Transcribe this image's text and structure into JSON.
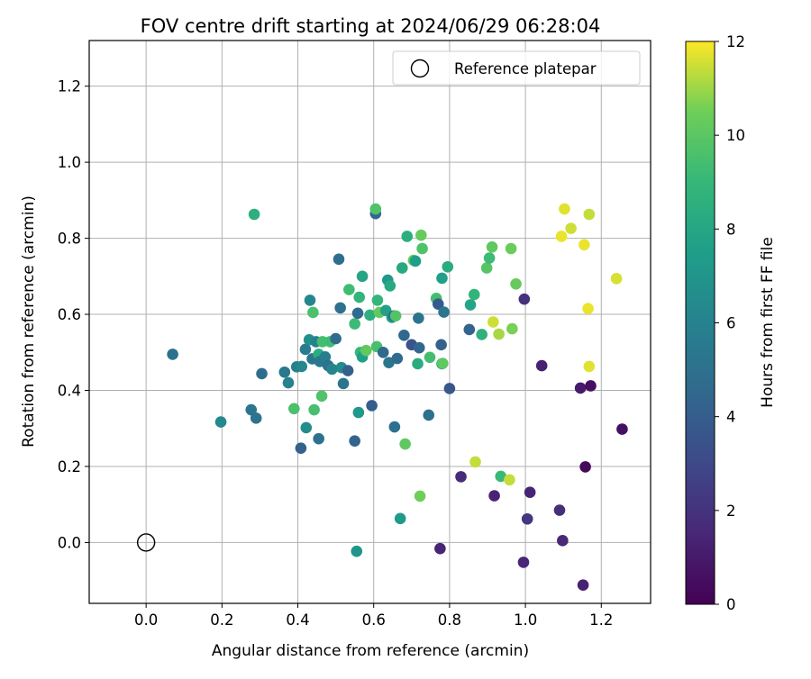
{
  "chart_data": {
    "type": "scatter",
    "title": "FOV centre drift starting at 2024/06/29 06:28:04",
    "xlabel": "Angular distance from reference (arcmin)",
    "ylabel": "Rotation from reference (arcmin)",
    "xlim": [
      -0.15,
      1.33
    ],
    "ylim": [
      -0.16,
      1.32
    ],
    "x_ticks": [
      0.0,
      0.2,
      0.4,
      0.6,
      0.8,
      1.0,
      1.2
    ],
    "x_tick_labels": [
      "0.0",
      "0.2",
      "0.4",
      "0.6",
      "0.8",
      "1.0",
      "1.2"
    ],
    "y_ticks": [
      0.0,
      0.2,
      0.4,
      0.6,
      0.8,
      1.0,
      1.2
    ],
    "y_tick_labels": [
      "0.0",
      "0.2",
      "0.4",
      "0.6",
      "0.8",
      "1.0",
      "1.2"
    ],
    "grid": true,
    "legend": {
      "position": "top-right",
      "entries": [
        {
          "label": "Reference platepar",
          "marker": "open-circle"
        }
      ]
    },
    "reference_point": {
      "x": 0.0,
      "y": 0.0
    },
    "colorbar": {
      "label": "Hours from first FF file",
      "range": [
        0,
        12
      ],
      "ticks": [
        0,
        2,
        4,
        6,
        8,
        10,
        12
      ],
      "tick_labels": [
        "0",
        "2",
        "4",
        "6",
        "8",
        "10",
        "12"
      ],
      "colormap": "viridis"
    },
    "points": [
      [
        0.07,
        0.495,
        5.0
      ],
      [
        0.197,
        0.317,
        6.3
      ],
      [
        0.277,
        0.349,
        5.3
      ],
      [
        0.285,
        0.863,
        8.5
      ],
      [
        0.29,
        0.327,
        5.2
      ],
      [
        0.305,
        0.444,
        4.8
      ],
      [
        0.365,
        0.448,
        5.4
      ],
      [
        0.375,
        0.42,
        6.0
      ],
      [
        0.39,
        0.352,
        9.6
      ],
      [
        0.397,
        0.462,
        5.8
      ],
      [
        0.408,
        0.248,
        4.2
      ],
      [
        0.41,
        0.463,
        6.2
      ],
      [
        0.42,
        0.508,
        5.6
      ],
      [
        0.422,
        0.302,
        6.6
      ],
      [
        0.43,
        0.533,
        6.7
      ],
      [
        0.432,
        0.637,
        6.2
      ],
      [
        0.438,
        0.483,
        5.3
      ],
      [
        0.44,
        0.605,
        9.6
      ],
      [
        0.443,
        0.349,
        9.5
      ],
      [
        0.448,
        0.528,
        6.0
      ],
      [
        0.455,
        0.495,
        8.4
      ],
      [
        0.455,
        0.273,
        5.0
      ],
      [
        0.458,
        0.476,
        5.4
      ],
      [
        0.463,
        0.385,
        9.7
      ],
      [
        0.465,
        0.528,
        9.4
      ],
      [
        0.472,
        0.488,
        5.7
      ],
      [
        0.48,
        0.465,
        5.1
      ],
      [
        0.485,
        0.528,
        9.3
      ],
      [
        0.49,
        0.456,
        6.1
      ],
      [
        0.5,
        0.536,
        4.6
      ],
      [
        0.508,
        0.745,
        4.9
      ],
      [
        0.512,
        0.617,
        5.0
      ],
      [
        0.515,
        0.46,
        6.5
      ],
      [
        0.52,
        0.418,
        5.2
      ],
      [
        0.532,
        0.452,
        4.1
      ],
      [
        0.535,
        0.665,
        9.3
      ],
      [
        0.55,
        0.575,
        9.2
      ],
      [
        0.55,
        0.267,
        4.3
      ],
      [
        0.555,
        -0.023,
        7.0
      ],
      [
        0.558,
        0.603,
        4.6
      ],
      [
        0.56,
        0.342,
        7.2
      ],
      [
        0.562,
        0.645,
        8.8
      ],
      [
        0.565,
        0.5,
        9.0
      ],
      [
        0.57,
        0.7,
        7.9
      ],
      [
        0.57,
        0.488,
        7.6
      ],
      [
        0.58,
        0.505,
        10.2
      ],
      [
        0.59,
        0.598,
        8.5
      ],
      [
        0.595,
        0.36,
        4.0
      ],
      [
        0.605,
        0.865,
        4.4
      ],
      [
        0.605,
        0.877,
        9.7
      ],
      [
        0.608,
        0.515,
        9.5
      ],
      [
        0.61,
        0.637,
        8.9
      ],
      [
        0.615,
        0.605,
        10.2
      ],
      [
        0.625,
        0.5,
        4.5
      ],
      [
        0.632,
        0.61,
        7.7
      ],
      [
        0.637,
        0.69,
        7.2
      ],
      [
        0.64,
        0.473,
        5.3
      ],
      [
        0.643,
        0.675,
        8.1
      ],
      [
        0.648,
        0.592,
        7.5
      ],
      [
        0.653,
        0.596,
        4.6
      ],
      [
        0.655,
        0.304,
        4.9
      ],
      [
        0.658,
        0.596,
        9.8
      ],
      [
        0.662,
        0.484,
        4.7
      ],
      [
        0.67,
        0.063,
        7.3
      ],
      [
        0.675,
        0.722,
        8.1
      ],
      [
        0.68,
        0.545,
        4.5
      ],
      [
        0.683,
        0.259,
        10.1
      ],
      [
        0.688,
        0.805,
        8.4
      ],
      [
        0.7,
        0.52,
        3.5
      ],
      [
        0.705,
        0.742,
        10.3
      ],
      [
        0.71,
        0.74,
        7.5
      ],
      [
        0.716,
        0.47,
        8.3
      ],
      [
        0.718,
        0.59,
        5.2
      ],
      [
        0.72,
        0.512,
        4.5
      ],
      [
        0.722,
        0.122,
        10.5
      ],
      [
        0.725,
        0.808,
        10.3
      ],
      [
        0.728,
        0.773,
        9.7
      ],
      [
        0.745,
        0.335,
        5.0
      ],
      [
        0.748,
        0.487,
        9.4
      ],
      [
        0.765,
        0.642,
        9.4
      ],
      [
        0.77,
        0.627,
        3.8
      ],
      [
        0.775,
        -0.016,
        1.4
      ],
      [
        0.778,
        0.52,
        4.2
      ],
      [
        0.78,
        0.695,
        7.6
      ],
      [
        0.78,
        0.47,
        7.7
      ],
      [
        0.782,
        0.471,
        10.1
      ],
      [
        0.785,
        0.606,
        5.3
      ],
      [
        0.795,
        0.725,
        8.3
      ],
      [
        0.8,
        0.405,
        3.7
      ],
      [
        0.83,
        0.173,
        1.7
      ],
      [
        0.852,
        0.56,
        4.3
      ],
      [
        0.855,
        0.625,
        7.9
      ],
      [
        0.865,
        0.652,
        8.8
      ],
      [
        0.868,
        0.212,
        11.4
      ],
      [
        0.885,
        0.547,
        8.6
      ],
      [
        0.898,
        0.722,
        9.9
      ],
      [
        0.905,
        0.748,
        9.2
      ],
      [
        0.912,
        0.777,
        10.1
      ],
      [
        0.915,
        0.58,
        11.5
      ],
      [
        0.918,
        0.123,
        1.4
      ],
      [
        0.93,
        0.548,
        11.1
      ],
      [
        0.935,
        0.174,
        9.1
      ],
      [
        0.958,
        0.165,
        11.4
      ],
      [
        0.962,
        0.773,
        10.4
      ],
      [
        0.965,
        0.562,
        10.6
      ],
      [
        0.975,
        0.68,
        10.3
      ],
      [
        0.995,
        -0.052,
        1.5
      ],
      [
        0.997,
        0.64,
        2.0
      ],
      [
        1.005,
        0.062,
        2.2
      ],
      [
        1.012,
        0.132,
        1.4
      ],
      [
        1.043,
        0.465,
        1.3
      ],
      [
        1.09,
        0.085,
        1.8
      ],
      [
        1.095,
        0.805,
        11.8
      ],
      [
        1.098,
        0.005,
        1.6
      ],
      [
        1.103,
        0.877,
        11.7
      ],
      [
        1.12,
        0.826,
        11.5
      ],
      [
        1.145,
        0.406,
        1.0
      ],
      [
        1.152,
        -0.112,
        1.3
      ],
      [
        1.155,
        0.783,
        11.8
      ],
      [
        1.158,
        0.199,
        0.3
      ],
      [
        1.165,
        0.615,
        11.8
      ],
      [
        1.168,
        0.863,
        11.4
      ],
      [
        1.168,
        0.463,
        11.7
      ],
      [
        1.172,
        0.412,
        0.5
      ],
      [
        1.24,
        0.694,
        11.6
      ],
      [
        1.255,
        0.298,
        0.6
      ]
    ]
  }
}
